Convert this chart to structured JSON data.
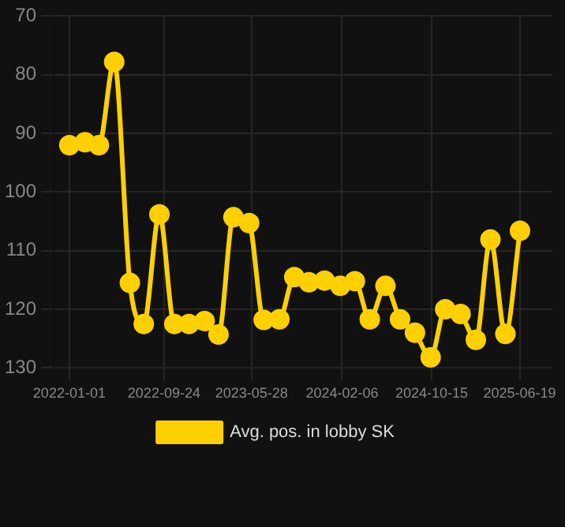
{
  "chart_data": {
    "type": "line",
    "x": [
      "2022-01-01",
      "2022-02-14",
      "2022-03-25",
      "2022-05-07",
      "2022-06-20",
      "2022-07-29",
      "2022-09-11",
      "2022-10-23",
      "2022-12-03",
      "2023-01-16",
      "2023-02-24",
      "2023-04-07",
      "2023-05-21",
      "2023-07-01",
      "2023-08-14",
      "2023-09-25",
      "2023-11-05",
      "2023-12-19",
      "2024-02-01",
      "2024-03-13",
      "2024-04-24",
      "2024-06-07",
      "2024-07-18",
      "2024-08-29",
      "2024-10-12",
      "2024-11-22",
      "2025-01-04",
      "2025-02-16",
      "2025-03-29",
      "2025-05-10",
      "2025-06-20"
    ],
    "series": [
      {
        "name": "Avg. pos. in lobby SK",
        "color": "#ffd000",
        "values": [
          92,
          91.5,
          92,
          77.8,
          115.5,
          122.5,
          103.8,
          122.5,
          122.5,
          122,
          124.3,
          104.3,
          105.3,
          121.8,
          121.7,
          114.5,
          115.4,
          115.1,
          116,
          115.2,
          121.7,
          116,
          121.7,
          124,
          128.2,
          120,
          120.8,
          125.2,
          108.1,
          124.2,
          106.6
        ]
      }
    ],
    "xlim": [
      "2021-11-18",
      "2025-09-19"
    ],
    "xticks": [
      "2022-01-01",
      "2022-09-24",
      "2023-05-28",
      "2024-02-06",
      "2024-10-15",
      "2025-06-19"
    ],
    "ylim": [
      130,
      70
    ],
    "yticks": [
      70,
      80,
      90,
      100,
      110,
      120,
      130
    ],
    "grid": true,
    "legend": "bottom",
    "marker": "circle",
    "line_style": "solid"
  }
}
